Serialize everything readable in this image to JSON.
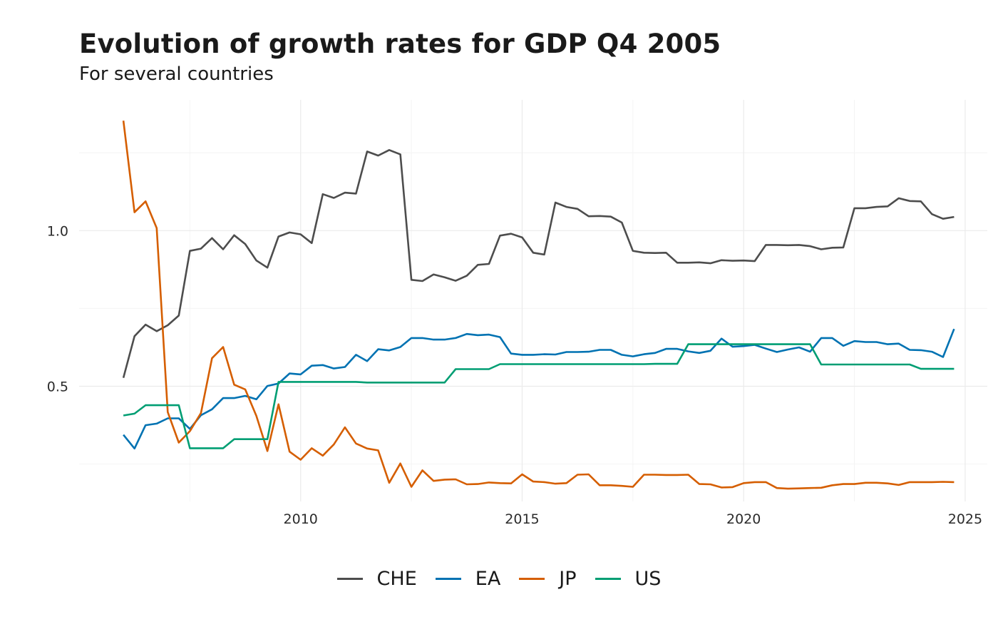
{
  "title": "Evolution of growth rates for GDP Q4 2005",
  "subtitle": "For several countries",
  "chart_data": {
    "type": "line",
    "title": "Evolution of growth rates for GDP Q4 2005",
    "subtitle": "For several countries",
    "xlabel": "",
    "ylabel": "",
    "x_start": "2006 Q1",
    "x_frequency": "quarterly",
    "x_ticks": [
      2010,
      2015,
      2020,
      2025
    ],
    "y_ticks": [
      0.5,
      1.0
    ],
    "y_tick_labels": [
      "0.5",
      "1.0"
    ],
    "xlim": [
      2005,
      2025.5
    ],
    "ylim": [
      0.13,
      1.42
    ],
    "grid": true,
    "legend": "bottom",
    "series": [
      {
        "name": "CHE",
        "color": "#4d4d4d",
        "values": [
          0.527,
          0.661,
          0.698,
          0.677,
          0.696,
          0.727,
          0.935,
          0.942,
          0.976,
          0.94,
          0.985,
          0.957,
          0.904,
          0.881,
          0.981,
          0.994,
          0.988,
          0.96,
          1.117,
          1.105,
          1.122,
          1.119,
          1.254,
          1.241,
          1.259,
          1.245,
          0.842,
          0.838,
          0.859,
          0.85,
          0.839,
          0.855,
          0.89,
          0.893,
          0.984,
          0.99,
          0.978,
          0.929,
          0.923,
          1.09,
          1.076,
          1.07,
          1.046,
          1.047,
          1.045,
          1.026,
          0.935,
          0.929,
          0.928,
          0.929,
          0.897,
          0.897,
          0.898,
          0.895,
          0.905,
          0.903,
          0.904,
          0.902,
          0.954,
          0.954,
          0.953,
          0.954,
          0.95,
          0.94,
          0.945,
          0.946,
          1.072,
          1.072,
          1.076,
          1.078,
          1.104,
          1.095,
          1.094,
          1.053,
          1.038,
          1.044
        ]
      },
      {
        "name": "EA",
        "color": "#0072b2",
        "values": [
          0.344,
          0.3,
          0.375,
          0.38,
          0.397,
          0.397,
          0.363,
          0.407,
          0.426,
          0.462,
          0.462,
          0.469,
          0.458,
          0.501,
          0.509,
          0.541,
          0.538,
          0.566,
          0.568,
          0.557,
          0.562,
          0.601,
          0.581,
          0.619,
          0.615,
          0.626,
          0.655,
          0.655,
          0.65,
          0.65,
          0.655,
          0.668,
          0.664,
          0.666,
          0.658,
          0.605,
          0.601,
          0.601,
          0.603,
          0.602,
          0.61,
          0.61,
          0.611,
          0.617,
          0.617,
          0.601,
          0.596,
          0.603,
          0.607,
          0.62,
          0.62,
          0.612,
          0.607,
          0.614,
          0.653,
          0.627,
          0.629,
          0.633,
          0.621,
          0.61,
          0.618,
          0.625,
          0.611,
          0.655,
          0.655,
          0.63,
          0.645,
          0.642,
          0.642,
          0.635,
          0.637,
          0.617,
          0.616,
          0.611,
          0.594,
          0.684
        ]
      },
      {
        "name": "JP",
        "color": "#d55e00",
        "values": [
          1.353,
          1.059,
          1.094,
          1.008,
          0.417,
          0.319,
          0.356,
          0.414,
          0.59,
          0.626,
          0.505,
          0.49,
          0.405,
          0.292,
          0.442,
          0.29,
          0.264,
          0.301,
          0.277,
          0.313,
          0.368,
          0.316,
          0.3,
          0.294,
          0.19,
          0.252,
          0.177,
          0.23,
          0.196,
          0.2,
          0.201,
          0.185,
          0.186,
          0.191,
          0.189,
          0.188,
          0.217,
          0.194,
          0.192,
          0.187,
          0.189,
          0.216,
          0.217,
          0.182,
          0.182,
          0.18,
          0.177,
          0.216,
          0.216,
          0.215,
          0.215,
          0.216,
          0.186,
          0.185,
          0.175,
          0.176,
          0.189,
          0.192,
          0.192,
          0.173,
          0.171,
          0.172,
          0.173,
          0.174,
          0.182,
          0.186,
          0.186,
          0.19,
          0.19,
          0.188,
          0.183,
          0.192,
          0.192,
          0.192,
          0.193,
          0.192
        ]
      },
      {
        "name": "US",
        "color": "#009e73",
        "values": [
          0.406,
          0.412,
          0.439,
          0.439,
          0.439,
          0.439,
          0.301,
          0.301,
          0.301,
          0.301,
          0.33,
          0.33,
          0.33,
          0.33,
          0.514,
          0.514,
          0.514,
          0.514,
          0.514,
          0.514,
          0.514,
          0.514,
          0.512,
          0.512,
          0.512,
          0.512,
          0.512,
          0.512,
          0.512,
          0.512,
          0.555,
          0.555,
          0.555,
          0.555,
          0.571,
          0.571,
          0.571,
          0.571,
          0.571,
          0.571,
          0.571,
          0.571,
          0.571,
          0.571,
          0.571,
          0.571,
          0.571,
          0.571,
          0.572,
          0.572,
          0.572,
          0.635,
          0.635,
          0.635,
          0.635,
          0.635,
          0.635,
          0.635,
          0.635,
          0.635,
          0.635,
          0.635,
          0.635,
          0.57,
          0.57,
          0.57,
          0.57,
          0.57,
          0.57,
          0.57,
          0.57,
          0.57,
          0.556,
          0.556,
          0.556,
          0.556
        ]
      }
    ]
  }
}
